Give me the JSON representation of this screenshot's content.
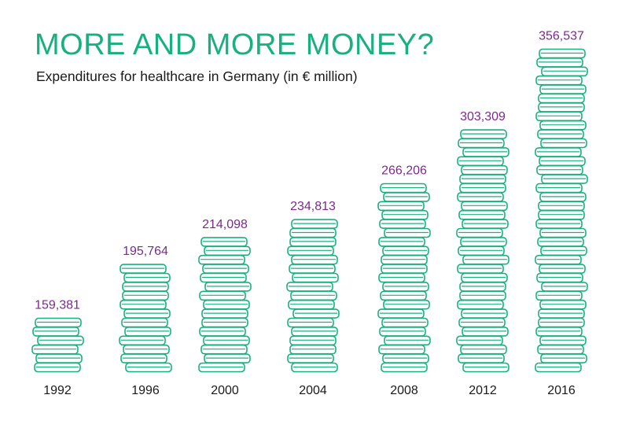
{
  "chart_data": {
    "type": "bar",
    "title": "MORE AND MORE MONEY?",
    "subtitle": "Expenditures for healthcare in Germany (in € million)",
    "categories": [
      "1992",
      "1996",
      "2000",
      "2004",
      "2008",
      "2012",
      "2016"
    ],
    "values": [
      159381,
      195764,
      214098,
      234813,
      266206,
      303309,
      356537
    ],
    "value_labels": [
      "159,381",
      "195,764",
      "214,098",
      "234,813",
      "266,206",
      "303,309",
      "356,537"
    ],
    "coins": [
      6,
      12,
      15,
      17,
      21,
      27,
      36
    ],
    "xlabel": "",
    "ylabel": "",
    "grid": false,
    "legend": "none",
    "colors": {
      "title": "#19b07f",
      "coin_stroke": "#19b07f",
      "value_label": "#7b2a8c",
      "category_label": "#1a1a1a",
      "subtitle": "#1a1a1a"
    }
  }
}
